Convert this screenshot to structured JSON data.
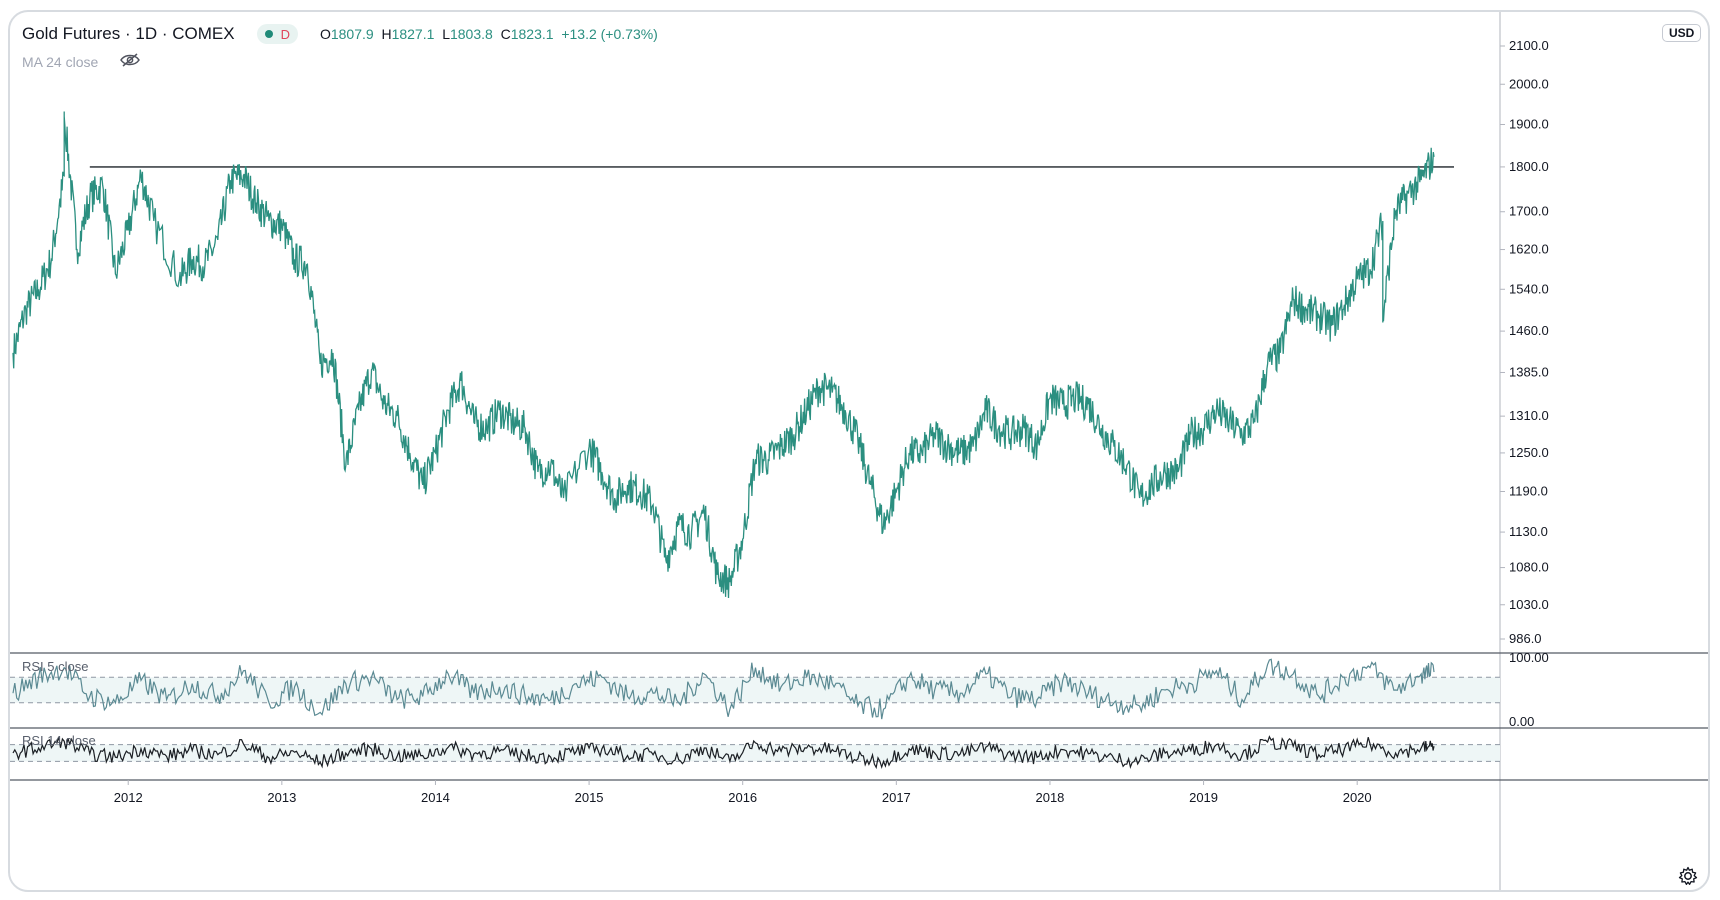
{
  "legend": {
    "symbol": "Gold Futures · 1D · COMEX",
    "interval_badge": "D",
    "ohlc": [
      {
        "k": "O",
        "v": "1807.9"
      },
      {
        "k": "H",
        "v": "1827.1"
      },
      {
        "k": "L",
        "v": "1803.8"
      },
      {
        "k": "C",
        "v": "1823.1"
      }
    ],
    "change": "+13.2 (+0.73%)",
    "ma_label": "MA 24 close"
  },
  "currency": "USD",
  "panes": {
    "rsi5_label": "RSI 5 close",
    "rsi14_label": "RSI 14 close"
  },
  "colors": {
    "price_line": "#2b8f80",
    "rsi5_line": "#5b8a93",
    "rsi14_line": "#1b1f24",
    "hline": "#3f4449",
    "band_fill": "#eef6f6",
    "grid": "#e6e8ec"
  },
  "chart_data": [
    {
      "type": "line",
      "title": "Gold Futures · 1D · COMEX",
      "ylabel": "USD",
      "y_scale": "log",
      "y_ticks": [
        986.0,
        1030.0,
        1080.0,
        1130.0,
        1190.0,
        1250.0,
        1310.0,
        1385.0,
        1460.0,
        1540.0,
        1620.0,
        1700.0,
        1800.0,
        1900.0,
        2000.0,
        2100.0
      ],
      "x_ticks": [
        "2012",
        "2013",
        "2014",
        "2015",
        "2016",
        "2017",
        "2018",
        "2019",
        "2020"
      ],
      "xlim": [
        "2011-04",
        "2020-07"
      ],
      "horizontal_line": 1800,
      "series": [
        {
          "x": [
            "2011-04",
            "2011-05",
            "2011-06",
            "2011-07",
            "2011-08",
            "2011-08",
            "2011-09",
            "2011-10",
            "2011-11",
            "2011-12",
            "2012-01",
            "2012-02",
            "2012-03",
            "2012-05",
            "2012-06",
            "2012-07",
            "2012-08",
            "2012-09",
            "2012-10",
            "2012-11",
            "2012-12",
            "2013-01",
            "2013-02",
            "2013-03",
            "2013-04",
            "2013-05",
            "2013-06",
            "2013-07",
            "2013-08",
            "2013-09",
            "2013-10",
            "2013-11",
            "2013-12",
            "2014-01",
            "2014-02",
            "2014-03",
            "2014-04",
            "2014-05",
            "2014-06",
            "2014-07",
            "2014-08",
            "2014-09",
            "2014-10",
            "2014-11",
            "2015-01",
            "2015-02",
            "2015-03",
            "2015-04",
            "2015-05",
            "2015-06",
            "2015-07",
            "2015-08",
            "2015-09",
            "2015-10",
            "2015-11",
            "2015-12",
            "2016-01",
            "2016-02",
            "2016-03",
            "2016-04",
            "2016-05",
            "2016-06",
            "2016-07",
            "2016-08",
            "2016-09",
            "2016-10",
            "2016-11",
            "2016-12",
            "2017-01",
            "2017-02",
            "2017-03",
            "2017-04",
            "2017-05",
            "2017-06",
            "2017-07",
            "2017-08",
            "2017-09",
            "2017-10",
            "2017-11",
            "2017-12",
            "2018-01",
            "2018-02",
            "2018-03",
            "2018-04",
            "2018-05",
            "2018-06",
            "2018-07",
            "2018-08",
            "2018-09",
            "2018-10",
            "2018-11",
            "2018-12",
            "2019-01",
            "2019-02",
            "2019-03",
            "2019-04",
            "2019-05",
            "2019-06",
            "2019-07",
            "2019-08",
            "2019-09",
            "2019-10",
            "2019-11",
            "2019-12",
            "2020-01",
            "2020-02",
            "2020-03",
            "2020-03",
            "2020-04",
            "2020-05",
            "2020-06",
            "2020-07"
          ],
          "values": [
            1420,
            1500,
            1540,
            1600,
            1780,
            1920,
            1620,
            1730,
            1760,
            1570,
            1660,
            1780,
            1680,
            1560,
            1600,
            1590,
            1640,
            1770,
            1780,
            1720,
            1680,
            1670,
            1600,
            1590,
            1400,
            1420,
            1230,
            1320,
            1390,
            1330,
            1310,
            1250,
            1200,
            1250,
            1320,
            1370,
            1300,
            1290,
            1320,
            1300,
            1290,
            1220,
            1230,
            1180,
            1260,
            1220,
            1180,
            1200,
            1190,
            1170,
            1090,
            1140,
            1130,
            1160,
            1070,
            1060,
            1120,
            1240,
            1240,
            1260,
            1280,
            1320,
            1360,
            1350,
            1320,
            1270,
            1200,
            1140,
            1190,
            1250,
            1250,
            1280,
            1260,
            1250,
            1260,
            1320,
            1290,
            1280,
            1290,
            1260,
            1340,
            1330,
            1340,
            1330,
            1290,
            1260,
            1230,
            1180,
            1200,
            1220,
            1220,
            1280,
            1290,
            1320,
            1300,
            1280,
            1300,
            1400,
            1420,
            1520,
            1500,
            1490,
            1470,
            1510,
            1560,
            1580,
            1680,
            1480,
            1700,
            1740,
            1770,
            1823
          ]
        }
      ]
    },
    {
      "type": "line",
      "title": "RSI 5 close",
      "y_ticks": [
        0.0,
        100.0
      ],
      "ylim": [
        0,
        100
      ],
      "bands": [
        30,
        70
      ],
      "series": [
        {
          "x": [
            "2011-04",
            "2011-06",
            "2011-08",
            "2011-10",
            "2011-12",
            "2012-02",
            "2012-04",
            "2012-06",
            "2012-08",
            "2012-10",
            "2012-12",
            "2013-02",
            "2013-04",
            "2013-06",
            "2013-08",
            "2013-10",
            "2013-12",
            "2014-02",
            "2014-04",
            "2014-06",
            "2014-08",
            "2014-10",
            "2014-12",
            "2015-02",
            "2015-04",
            "2015-06",
            "2015-08",
            "2015-10",
            "2015-12",
            "2016-02",
            "2016-04",
            "2016-06",
            "2016-08",
            "2016-10",
            "2016-12",
            "2017-02",
            "2017-04",
            "2017-06",
            "2017-08",
            "2017-10",
            "2017-12",
            "2018-02",
            "2018-04",
            "2018-06",
            "2018-08",
            "2018-10",
            "2018-12",
            "2019-02",
            "2019-04",
            "2019-06",
            "2019-08",
            "2019-10",
            "2019-12",
            "2020-02",
            "2020-04",
            "2020-06",
            "2020-07"
          ],
          "values": [
            45,
            70,
            85,
            40,
            30,
            65,
            35,
            60,
            40,
            80,
            30,
            55,
            15,
            60,
            70,
            35,
            40,
            75,
            45,
            55,
            40,
            35,
            60,
            70,
            40,
            45,
            30,
            75,
            20,
            85,
            55,
            70,
            60,
            25,
            20,
            70,
            50,
            45,
            75,
            40,
            35,
            65,
            45,
            30,
            25,
            50,
            60,
            80,
            35,
            90,
            75,
            40,
            70,
            85,
            50,
            75,
            78
          ]
        }
      ]
    },
    {
      "type": "line",
      "title": "RSI 14 close",
      "bands": [
        30,
        70
      ],
      "series": [
        {
          "x": [
            "2011-04",
            "2011-06",
            "2011-08",
            "2011-10",
            "2011-12",
            "2012-02",
            "2012-04",
            "2012-06",
            "2012-08",
            "2012-10",
            "2012-12",
            "2013-02",
            "2013-04",
            "2013-06",
            "2013-08",
            "2013-10",
            "2013-12",
            "2014-02",
            "2014-04",
            "2014-06",
            "2014-08",
            "2014-10",
            "2014-12",
            "2015-02",
            "2015-04",
            "2015-06",
            "2015-08",
            "2015-10",
            "2015-12",
            "2016-02",
            "2016-04",
            "2016-06",
            "2016-08",
            "2016-10",
            "2016-12",
            "2017-02",
            "2017-04",
            "2017-06",
            "2017-08",
            "2017-10",
            "2017-12",
            "2018-02",
            "2018-04",
            "2018-06",
            "2018-08",
            "2018-10",
            "2018-12",
            "2019-02",
            "2019-04",
            "2019-06",
            "2019-08",
            "2019-10",
            "2019-12",
            "2020-02",
            "2020-04",
            "2020-06",
            "2020-07"
          ],
          "values": [
            50,
            62,
            78,
            48,
            40,
            60,
            42,
            56,
            46,
            72,
            38,
            52,
            28,
            50,
            60,
            42,
            44,
            64,
            48,
            54,
            44,
            40,
            54,
            60,
            44,
            46,
            34,
            62,
            30,
            74,
            54,
            62,
            58,
            36,
            30,
            60,
            50,
            48,
            64,
            44,
            40,
            58,
            48,
            36,
            32,
            50,
            56,
            70,
            44,
            76,
            66,
            46,
            60,
            72,
            50,
            62,
            66
          ]
        }
      ]
    }
  ]
}
